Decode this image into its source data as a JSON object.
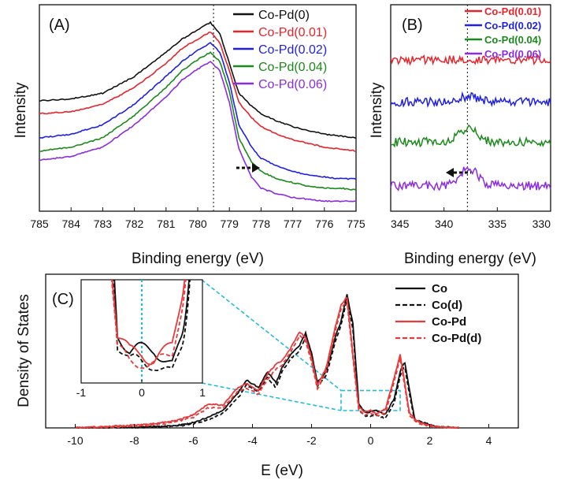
{
  "colors": {
    "black": "#111111",
    "red": "#e8232a",
    "blue": "#1f1fe6",
    "green": "#1a8a1a",
    "purple": "#8b2be2",
    "cyan": "#22bce0",
    "co_pd_red": "#e83a3a"
  },
  "chart_data": [
    {
      "panel": "(A)",
      "type": "line",
      "xlabel": "Binding energy (eV)",
      "ylabel": "Intensity",
      "xlim": [
        785,
        775
      ],
      "x_ticks": [
        "785",
        "784",
        "783",
        "782",
        "781",
        "780",
        "779",
        "778",
        "777",
        "776",
        "775"
      ],
      "marker_line_x": 779.5,
      "arrow_direction": "right",
      "legend_position": "top-right",
      "series": [
        {
          "name": "Co-Pd(0)",
          "color": "black",
          "offset": 0.0,
          "x": [
            785,
            784,
            783,
            782,
            781,
            780.5,
            780,
            779.6,
            779.3,
            779,
            778.7,
            778.3,
            778,
            777.5,
            777,
            776.5,
            776,
            775.5,
            775
          ],
          "y": [
            0.56,
            0.57,
            0.6,
            0.69,
            0.82,
            0.89,
            0.94,
            0.98,
            0.92,
            0.76,
            0.6,
            0.53,
            0.49,
            0.45,
            0.42,
            0.4,
            0.38,
            0.37,
            0.36
          ]
        },
        {
          "name": "Co-Pd(0.01)",
          "color": "red",
          "offset": 0.0,
          "x": [
            785,
            784,
            783,
            782,
            781,
            780.5,
            780,
            779.6,
            779.3,
            779,
            778.7,
            778.3,
            778,
            777.5,
            777,
            776.5,
            776,
            775.5,
            775
          ],
          "y": [
            0.49,
            0.5,
            0.54,
            0.63,
            0.76,
            0.84,
            0.89,
            0.93,
            0.87,
            0.72,
            0.55,
            0.47,
            0.42,
            0.38,
            0.35,
            0.33,
            0.31,
            0.3,
            0.29
          ]
        },
        {
          "name": "Co-Pd(0.02)",
          "color": "blue",
          "offset": 0.0,
          "x": [
            785,
            784,
            783,
            782,
            781,
            780.5,
            780,
            779.6,
            779.3,
            779,
            778.7,
            778.3,
            778,
            777.5,
            777,
            776.5,
            776,
            775.5,
            775
          ],
          "y": [
            0.36,
            0.38,
            0.43,
            0.54,
            0.69,
            0.77,
            0.83,
            0.87,
            0.82,
            0.66,
            0.43,
            0.31,
            0.25,
            0.21,
            0.18,
            0.16,
            0.15,
            0.14,
            0.14
          ]
        },
        {
          "name": "Co-Pd(0.04)",
          "color": "green",
          "offset": 0.0,
          "x": [
            785,
            784,
            783,
            782,
            781,
            780.5,
            780,
            779.6,
            779.3,
            779,
            778.7,
            778.3,
            778,
            777.5,
            777,
            776.5,
            776,
            775.5,
            775
          ],
          "y": [
            0.29,
            0.31,
            0.36,
            0.48,
            0.63,
            0.72,
            0.78,
            0.82,
            0.77,
            0.61,
            0.36,
            0.23,
            0.18,
            0.14,
            0.12,
            0.1,
            0.09,
            0.09,
            0.08
          ]
        },
        {
          "name": "Co-Pd(0.06)",
          "color": "purple",
          "offset": 0.0,
          "x": [
            785,
            784,
            783,
            782,
            781,
            780.5,
            780,
            779.6,
            779.3,
            779,
            778.7,
            778.3,
            778,
            777.5,
            777,
            776.5,
            776,
            775.5,
            775
          ],
          "y": [
            0.24,
            0.26,
            0.31,
            0.43,
            0.58,
            0.67,
            0.73,
            0.77,
            0.72,
            0.55,
            0.3,
            0.15,
            0.09,
            0.06,
            0.04,
            0.03,
            0.02,
            0.02,
            0.02
          ]
        }
      ],
      "ylim": [
        0,
        1.05
      ]
    },
    {
      "panel": "(B)",
      "type": "line",
      "xlabel": "Binding energy (eV)",
      "ylabel": "Intensity",
      "xlim": [
        345,
        330
      ],
      "x_ticks": [
        "345",
        "340",
        "335",
        "330"
      ],
      "marker_line_x": 337.8,
      "arrow_direction": "left",
      "legend_position": "top-right",
      "series": [
        {
          "name": "Co-Pd(0.01)",
          "color": "red",
          "baseline": 0.82,
          "bump": 0.0
        },
        {
          "name": "Co-Pd(0.02)",
          "color": "blue",
          "baseline": 0.58,
          "bump": 0.03
        },
        {
          "name": "Co-Pd(0.04)",
          "color": "green",
          "baseline": 0.35,
          "bump": 0.08
        },
        {
          "name": "Co-Pd(0.06)",
          "color": "purple",
          "baseline": 0.1,
          "bump": 0.1
        }
      ],
      "ylim": [
        0,
        1
      ]
    },
    {
      "panel": "(C)",
      "type": "line",
      "xlabel": "E (eV)",
      "ylabel": "Density of States",
      "xlim": [
        -11,
        5
      ],
      "x_ticks": [
        "-10",
        "-8",
        "-6",
        "-4",
        "-2",
        "0",
        "2",
        "4"
      ],
      "legend_position": "top-right",
      "series": [
        {
          "name": "Co",
          "color": "black",
          "dash": false,
          "x": [
            -10,
            -8,
            -7,
            -6.5,
            -6,
            -5.5,
            -5,
            -4.5,
            -4.2,
            -3.8,
            -3.5,
            -3.2,
            -3,
            -2.7,
            -2.4,
            -2.2,
            -2,
            -1.8,
            -1.5,
            -1.2,
            -1,
            -0.8,
            -0.6,
            -0.4,
            -0.2,
            0,
            0.2,
            0.5,
            0.8,
            1,
            1.15,
            1.3,
            1.5,
            1.8,
            2.2,
            3
          ],
          "y": [
            0,
            0.005,
            0.01,
            0.02,
            0.04,
            0.08,
            0.13,
            0.26,
            0.36,
            0.3,
            0.42,
            0.34,
            0.45,
            0.55,
            0.62,
            0.71,
            0.56,
            0.34,
            0.42,
            0.68,
            0.8,
            1.0,
            0.78,
            0.18,
            0.12,
            0.12,
            0.13,
            0.1,
            0.22,
            0.42,
            0.5,
            0.3,
            0.06,
            0.04,
            0.01,
            0
          ]
        },
        {
          "name": "Co(d)",
          "color": "black",
          "dash": true,
          "x": [
            -10,
            -8,
            -7,
            -6.5,
            -6,
            -5.5,
            -5,
            -4.5,
            -4.2,
            -3.8,
            -3.5,
            -3.2,
            -3,
            -2.7,
            -2.4,
            -2.2,
            -2,
            -1.8,
            -1.5,
            -1.2,
            -1,
            -0.8,
            -0.6,
            -0.4,
            -0.2,
            0,
            0.2,
            0.5,
            0.8,
            1,
            1.15,
            1.3,
            1.5,
            1.8,
            2.2,
            3
          ],
          "y": [
            0,
            0.004,
            0.008,
            0.015,
            0.03,
            0.06,
            0.11,
            0.22,
            0.32,
            0.27,
            0.38,
            0.3,
            0.42,
            0.52,
            0.58,
            0.68,
            0.53,
            0.31,
            0.39,
            0.64,
            0.77,
            0.96,
            0.74,
            0.14,
            0.09,
            0.09,
            0.1,
            0.07,
            0.19,
            0.39,
            0.47,
            0.27,
            0.05,
            0.03,
            0.01,
            0
          ]
        },
        {
          "name": "Co-Pd",
          "color": "co_pd_red",
          "dash": false,
          "x": [
            -10,
            -8,
            -7,
            -6.5,
            -6,
            -5.5,
            -5,
            -4.5,
            -4.2,
            -3.8,
            -3.5,
            -3.2,
            -3,
            -2.7,
            -2.4,
            -2.2,
            -2,
            -1.8,
            -1.5,
            -1.2,
            -1,
            -0.8,
            -0.6,
            -0.4,
            -0.2,
            0,
            0.2,
            0.5,
            0.8,
            1,
            1.15,
            1.3,
            1.5,
            1.8,
            2.2,
            3
          ],
          "y": [
            0,
            0.02,
            0.04,
            0.06,
            0.1,
            0.18,
            0.17,
            0.3,
            0.33,
            0.28,
            0.4,
            0.48,
            0.5,
            0.6,
            0.72,
            0.68,
            0.52,
            0.32,
            0.45,
            0.75,
            0.92,
            0.98,
            0.55,
            0.16,
            0.12,
            0.13,
            0.11,
            0.14,
            0.38,
            0.55,
            0.35,
            0.12,
            0.06,
            0.03,
            0.01,
            0
          ]
        },
        {
          "name": "Co-Pd(d)",
          "color": "co_pd_red",
          "dash": true,
          "x": [
            -10,
            -8,
            -7,
            -6.5,
            -6,
            -5.5,
            -5,
            -4.5,
            -4.2,
            -3.8,
            -3.5,
            -3.2,
            -3,
            -2.7,
            -2.4,
            -2.2,
            -2,
            -1.8,
            -1.5,
            -1.2,
            -1,
            -0.8,
            -0.6,
            -0.4,
            -0.2,
            0,
            0.2,
            0.5,
            0.8,
            1,
            1.15,
            1.3,
            1.5,
            1.8,
            2.2,
            3
          ],
          "y": [
            0,
            0.01,
            0.03,
            0.05,
            0.08,
            0.15,
            0.15,
            0.27,
            0.3,
            0.25,
            0.36,
            0.44,
            0.47,
            0.57,
            0.69,
            0.65,
            0.49,
            0.29,
            0.42,
            0.72,
            0.89,
            0.95,
            0.52,
            0.13,
            0.1,
            0.11,
            0.09,
            0.11,
            0.35,
            0.52,
            0.32,
            0.1,
            0.05,
            0.02,
            0.01,
            0
          ]
        }
      ],
      "ylim": [
        0,
        1.08
      ],
      "inset": {
        "xlim": [
          -1,
          1
        ],
        "x_ticks": [
          "-1",
          "0",
          "1"
        ],
        "zoom_box_x": [
          -1,
          1
        ]
      }
    }
  ]
}
